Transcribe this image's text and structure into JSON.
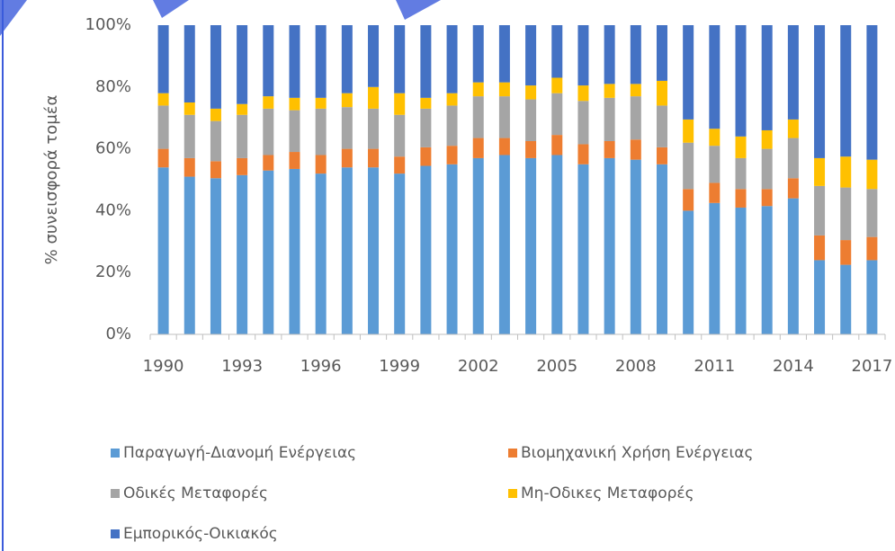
{
  "chart_data": {
    "type": "stacked_bar_percent",
    "y_label": "% συνεισφορά τομέα",
    "categories": [
      "1990",
      null,
      null,
      "1993",
      null,
      null,
      "1996",
      null,
      null,
      "1999",
      null,
      null,
      "2002",
      null,
      null,
      "2005",
      null,
      null,
      "2008",
      null,
      null,
      "2011",
      null,
      null,
      "2014",
      null,
      null,
      "2017"
    ],
    "series": [
      {
        "name": "Παραγωγή-Διανομή Ενέργειας",
        "color": "#5b9bd5",
        "values": [
          54,
          51,
          50.5,
          51.5,
          53,
          53.5,
          52,
          54,
          54,
          52,
          54.5,
          55,
          57,
          58,
          57,
          58,
          55,
          57,
          56.5,
          55,
          40,
          42.5,
          41,
          41.5,
          44,
          24,
          22.5,
          24
        ]
      },
      {
        "name": "Βιομηχανική Χρήση Ενέργειας",
        "color": "#ed7d31",
        "values": [
          6,
          6,
          5.5,
          5.5,
          5,
          5.5,
          6,
          6,
          6,
          5.5,
          6,
          6,
          6.5,
          5.5,
          5.5,
          6.5,
          6.5,
          5.5,
          6.5,
          5.5,
          7,
          6.5,
          6,
          5.5,
          6.5,
          8,
          8,
          7.5
        ]
      },
      {
        "name": "Οδικές Μεταφορές",
        "color": "#a5a5a5",
        "values": [
          14,
          14,
          13,
          14,
          15,
          13.5,
          15,
          13.5,
          13,
          13.5,
          12.5,
          13,
          13.5,
          13.5,
          13.5,
          13.5,
          14,
          14,
          14,
          13.5,
          15,
          12,
          10,
          13,
          13,
          16,
          17,
          15.5
        ]
      },
      {
        "name": "Μη-Οδικες Μεταφορές",
        "color": "#ffc000",
        "values": [
          4,
          4,
          4,
          3.5,
          4,
          4,
          3.5,
          4.5,
          7,
          7,
          3.5,
          4,
          4.5,
          4.5,
          4.5,
          5,
          5,
          4.5,
          4,
          8,
          7.5,
          5.5,
          7,
          6,
          6,
          9,
          10,
          9.5
        ]
      },
      {
        "name": "Εμπορικός-Οικιακός",
        "color": "#4472c4",
        "values": [
          22,
          25,
          27,
          25.5,
          23,
          23.5,
          23.5,
          22,
          20,
          22,
          23.5,
          22,
          18.5,
          18.5,
          19.5,
          17,
          19.5,
          19,
          19,
          18,
          30.5,
          33.5,
          36,
          34,
          30.5,
          43,
          42.5,
          43.5
        ]
      }
    ],
    "ylim": [
      0,
      100
    ],
    "yticks": [
      {
        "value": 0,
        "label": "0%"
      },
      {
        "value": 20,
        "label": "20%"
      },
      {
        "value": 40,
        "label": "40%"
      },
      {
        "value": 60,
        "label": "60%"
      },
      {
        "value": 80,
        "label": "80%"
      },
      {
        "value": 100,
        "label": "100%"
      }
    ],
    "grid": false,
    "legend": "bottom"
  }
}
